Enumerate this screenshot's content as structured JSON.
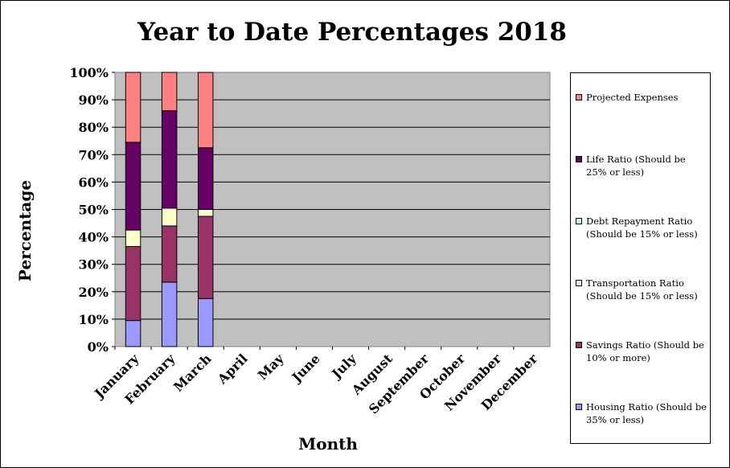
{
  "chart_data": {
    "type": "bar",
    "stacked": true,
    "title": "Year to Date Percentages 2018",
    "xlabel": "Month",
    "ylabel": "Percentage",
    "ylim": [
      0,
      100
    ],
    "ytick_labels": [
      "0%",
      "10%",
      "20%",
      "30%",
      "40%",
      "50%",
      "60%",
      "70%",
      "80%",
      "90%",
      "100%"
    ],
    "categories": [
      "January",
      "February",
      "March",
      "April",
      "May",
      "June",
      "July",
      "August",
      "September",
      "October",
      "November",
      "December"
    ],
    "series": [
      {
        "name": "Housing Ratio (Should be 35% or less)",
        "color": "#9999ff",
        "values": [
          9.5,
          23.5,
          17.5,
          0,
          0,
          0,
          0,
          0,
          0,
          0,
          0,
          0
        ]
      },
      {
        "name": "Savings Ratio (Should be 10% or more)",
        "color": "#993366",
        "values": [
          27,
          20.5,
          30,
          0,
          0,
          0,
          0,
          0,
          0,
          0,
          0,
          0
        ]
      },
      {
        "name": "Transportation Ratio (Should be 15% or less)",
        "color": "#ffffcc",
        "values": [
          6,
          6.5,
          2.5,
          0,
          0,
          0,
          0,
          0,
          0,
          0,
          0,
          0
        ]
      },
      {
        "name": "Debt Repayment Ratio (Should be 15% or less)",
        "color": "#ccffff",
        "values": [
          0,
          0,
          0,
          0,
          0,
          0,
          0,
          0,
          0,
          0,
          0,
          0
        ]
      },
      {
        "name": "Life Ratio (Should be 25% or less)",
        "color": "#660066",
        "values": [
          32,
          35.5,
          22.5,
          0,
          0,
          0,
          0,
          0,
          0,
          0,
          0,
          0
        ]
      },
      {
        "name": "Projected Expenses",
        "color": "#ff8080",
        "values": [
          25.5,
          14,
          27.5,
          0,
          0,
          0,
          0,
          0,
          0,
          0,
          0,
          0
        ]
      }
    ],
    "plot_background": "#c0c0c0",
    "grid": true,
    "legend_position": "right"
  }
}
